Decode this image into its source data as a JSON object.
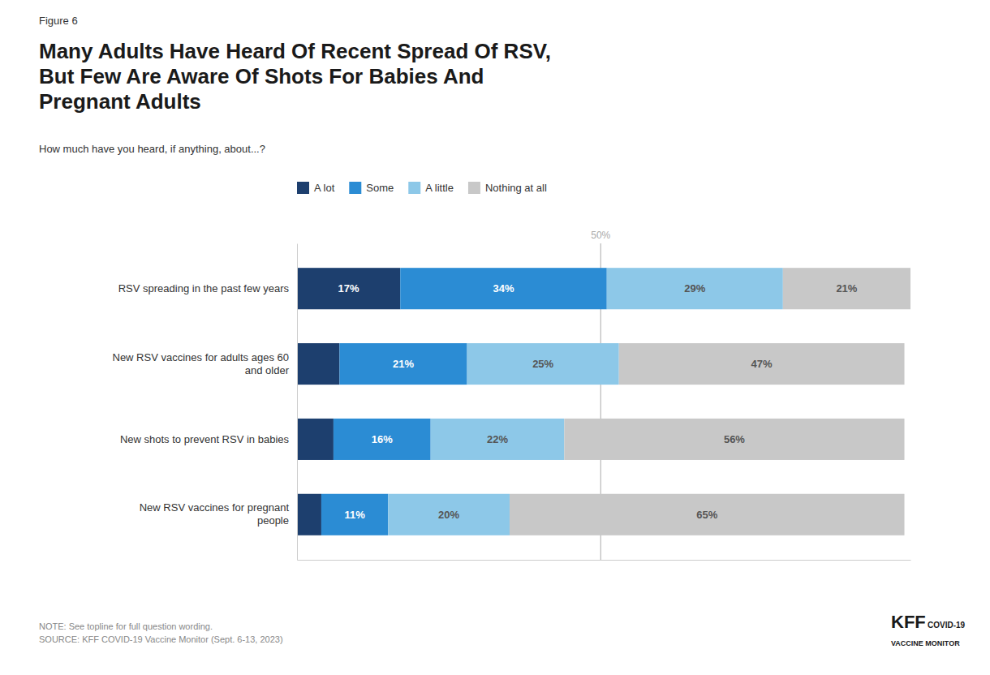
{
  "chart_data": {
    "type": "bar",
    "orientation": "horizontal",
    "stacked": true,
    "data_labels": true,
    "grid": false,
    "legend": "top",
    "tick_labels": "y",
    "title": "Many Adults Have Heard Of Recent Spread Of RSV,\nBut Few Are Aware Of Shots For Babies And\nPregnant Adults",
    "subtitle": "How much have you heard, if anything, about...?",
    "note": "NOTE: See topline for full question wording.\nSOURCE: KFF COVID-19 Vaccine Monitor (Sept. 6-13, 2023)",
    "annotations": [
      {
        "text": "Figure 6"
      },
      {
        "text": "50%",
        "x": 50
      },
      {
        "text": "KFF"
      },
      {
        "text": "COVID-19"
      },
      {
        "text": "VACCINE MONITOR"
      }
    ],
    "categories": [
      "RSV spreading in the past few years",
      "New RSV vaccines for adults ages 60\nand older",
      "New shots to prevent RSV in babies",
      "New RSV vaccines for pregnant\npeople"
    ],
    "series": [
      {
        "name": "A lot",
        "color": "#1d3f6e",
        "values": [
          17,
          7,
          6,
          4
        ],
        "value_labels": [
          "17%",
          null,
          null,
          null
        ]
      },
      {
        "name": "Some",
        "color": "#2b8cd4",
        "values": [
          34,
          21,
          16,
          11
        ],
        "value_labels": [
          "34%",
          "21%",
          "16%",
          "11%"
        ]
      },
      {
        "name": "A little",
        "color": "#8dc8e8",
        "values": [
          29,
          25,
          22,
          20
        ],
        "value_labels": [
          "29%",
          "25%",
          "22%",
          "20%"
        ]
      },
      {
        "name": "Nothing at all",
        "color": "#c8c8c8",
        "values": [
          21,
          47,
          56,
          65
        ],
        "value_labels": [
          "21%",
          "47%",
          "56%",
          "65%"
        ]
      }
    ],
    "xlim": [
      0,
      101
    ]
  }
}
